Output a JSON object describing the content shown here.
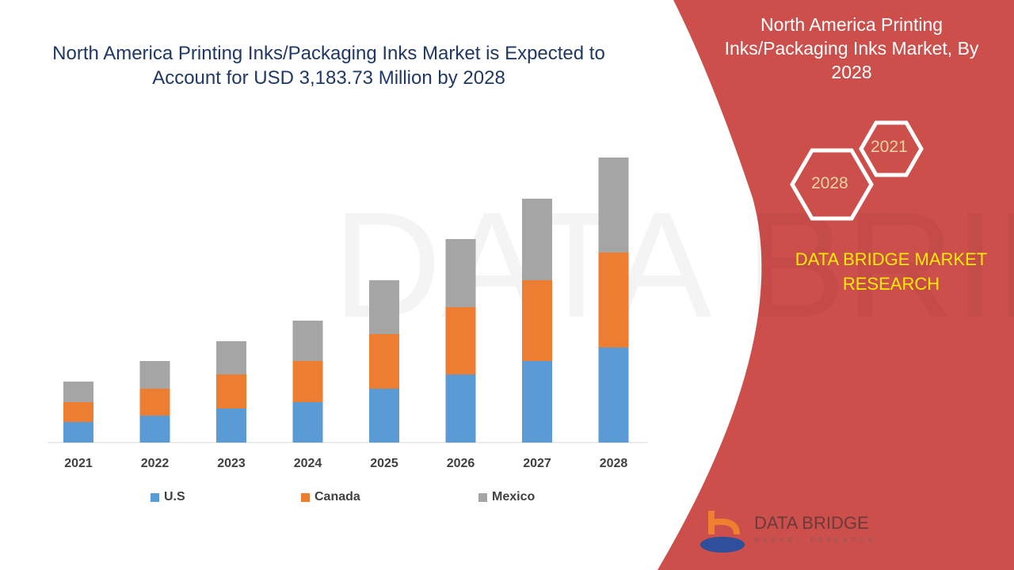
{
  "title": "North America Printing Inks/Packaging Inks Market is Expected to Account for USD 3,183.73 Million by 2028",
  "side_panel": {
    "title": "North America Printing Inks/Packaging Inks Market, By 2028",
    "hex_years": [
      "2021",
      "2028"
    ],
    "brand": "DATA BRIDGE MARKET RESEARCH",
    "logo_text": "DATA BRIDGE",
    "logo_subtext": "MARKET RESEARCH",
    "panel_color": "#cd4f4c"
  },
  "chart_data": {
    "type": "bar",
    "stacked": true,
    "title": "North America Printing Inks/Packaging Inks Market is Expected to Account for USD 3,183.73 Million by 2028",
    "xlabel": "",
    "ylabel": "",
    "y_units": "relative (no axis shown)",
    "ylim": [
      0,
      400
    ],
    "grid": false,
    "legend_position": "bottom",
    "categories": [
      "2021",
      "2022",
      "2023",
      "2024",
      "2025",
      "2026",
      "2027",
      "2028"
    ],
    "series": [
      {
        "name": "U.S",
        "color": "#5b9bd5",
        "values": [
          26,
          34,
          43,
          51,
          68,
          86,
          103,
          120
        ]
      },
      {
        "name": "Canada",
        "color": "#ed7d31",
        "values": [
          25,
          34,
          43,
          52,
          69,
          85,
          102,
          120
        ]
      },
      {
        "name": "Mexico",
        "color": "#a5a5a5",
        "values": [
          26,
          35,
          42,
          51,
          68,
          86,
          103,
          120
        ]
      }
    ]
  }
}
